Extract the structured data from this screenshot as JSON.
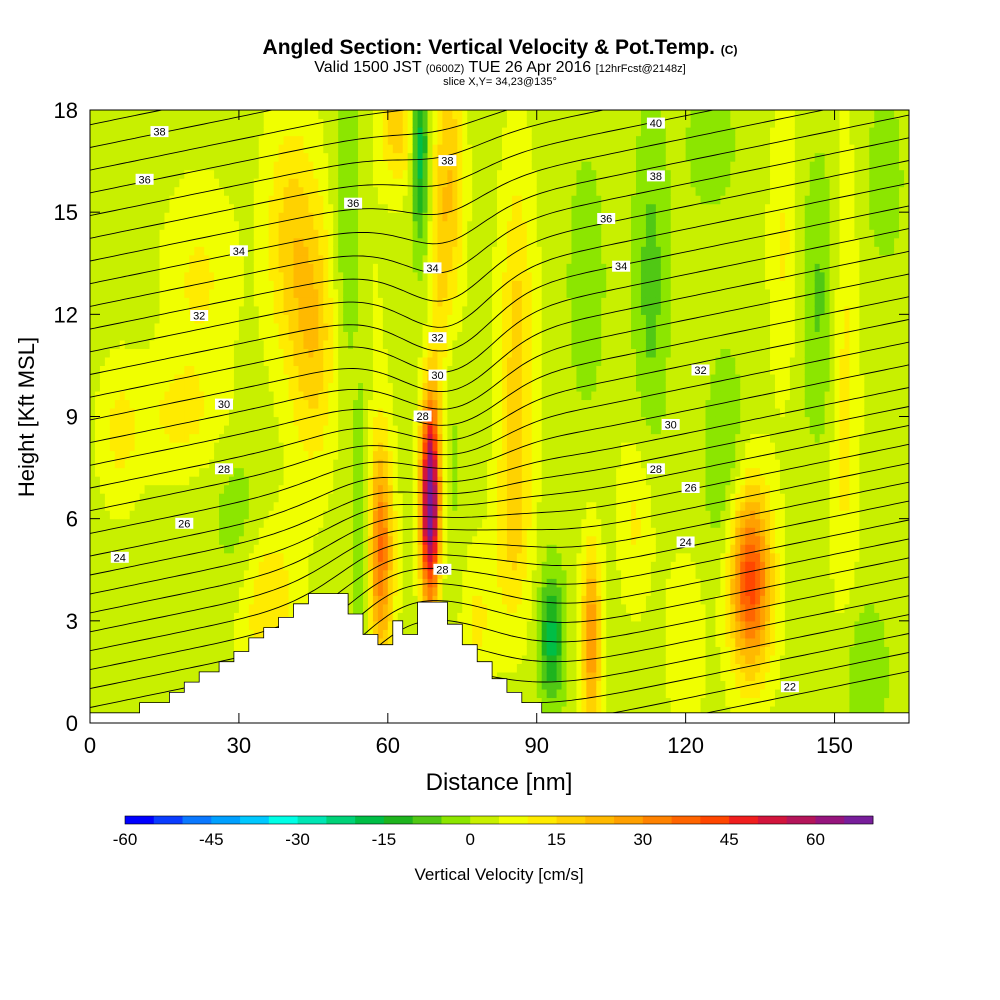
{
  "header": {
    "title_main": "Angled Section: Vertical Velocity & Pot.Temp.",
    "title_units": "(C)",
    "valid_prefix": "Valid 1500 JST",
    "valid_utc": "(0600Z)",
    "valid_date": "TUE 26 Apr 2016",
    "forecast": "[12hrFcst@2148z]",
    "slice": "slice X,Y= 34,23@135°"
  },
  "chart_data": {
    "type": "heatmap",
    "xlabel": "Distance [nm]",
    "ylabel": "Height [Kft MSL]",
    "xlim": [
      0,
      165
    ],
    "ylim": [
      0,
      18
    ],
    "x_ticks": [
      0,
      30,
      60,
      90,
      120,
      150
    ],
    "y_ticks": [
      0,
      3,
      6,
      9,
      12,
      15,
      18
    ],
    "colorbar": {
      "label": "Vertical Velocity [cm/s]",
      "range": [
        -60,
        70
      ],
      "step": 5,
      "ticks": [
        -60,
        -45,
        -30,
        -15,
        0,
        15,
        30,
        45,
        60
      ],
      "colors": [
        "#0000ff",
        "#0a3cff",
        "#0a78ff",
        "#00a0ff",
        "#00c8ff",
        "#00ffe6",
        "#00e6b4",
        "#00d278",
        "#00be46",
        "#1eb41e",
        "#50c814",
        "#8ce600",
        "#c8f000",
        "#f0ff00",
        "#ffeb00",
        "#ffd200",
        "#ffb900",
        "#ffa000",
        "#ff8200",
        "#ff6400",
        "#ff4600",
        "#f01e1e",
        "#d2143c",
        "#b4145a",
        "#96147d",
        "#781e9b"
      ]
    },
    "terrain_profile": [
      [
        0,
        0.3
      ],
      [
        10,
        0.3
      ],
      [
        10,
        0.6
      ],
      [
        16,
        0.6
      ],
      [
        16,
        0.9
      ],
      [
        19,
        0.9
      ],
      [
        19,
        1.2
      ],
      [
        22,
        1.2
      ],
      [
        22,
        1.5
      ],
      [
        26,
        1.5
      ],
      [
        26,
        1.8
      ],
      [
        29,
        1.8
      ],
      [
        29,
        2.1
      ],
      [
        32,
        2.1
      ],
      [
        32,
        2.5
      ],
      [
        35,
        2.5
      ],
      [
        35,
        2.8
      ],
      [
        38,
        2.8
      ],
      [
        38,
        3.1
      ],
      [
        41,
        3.1
      ],
      [
        41,
        3.5
      ],
      [
        44,
        3.5
      ],
      [
        44,
        3.8
      ],
      [
        52,
        3.8
      ],
      [
        52,
        3.2
      ],
      [
        55,
        3.2
      ],
      [
        55,
        2.6
      ],
      [
        58,
        2.6
      ],
      [
        58,
        2.3
      ],
      [
        61,
        2.3
      ],
      [
        61,
        3.0
      ],
      [
        63,
        3.0
      ],
      [
        63,
        2.6
      ],
      [
        66,
        2.6
      ],
      [
        66,
        3.55
      ],
      [
        72,
        3.55
      ],
      [
        72,
        2.9
      ],
      [
        75,
        2.9
      ],
      [
        75,
        2.3
      ],
      [
        78,
        2.3
      ],
      [
        78,
        1.8
      ],
      [
        81,
        1.8
      ],
      [
        81,
        1.3
      ],
      [
        84,
        1.3
      ],
      [
        84,
        0.9
      ],
      [
        87,
        0.9
      ],
      [
        87,
        0.6
      ],
      [
        91,
        0.6
      ],
      [
        91,
        0.3
      ],
      [
        165,
        0.3
      ]
    ],
    "velocity_field": {
      "background": 3,
      "features": [
        {
          "x": 68.5,
          "z": 6.5,
          "sx": 1.3,
          "sz": 2.1,
          "w": 70
        },
        {
          "x": 70.5,
          "z": 11.5,
          "sx": 1.7,
          "sz": 4.5,
          "w": 22
        },
        {
          "x": 73.0,
          "z": 15.5,
          "sx": 1.8,
          "sz": 3.0,
          "w": 16
        },
        {
          "x": 58.5,
          "z": 5.0,
          "sx": 1.8,
          "sz": 2.2,
          "w": 32
        },
        {
          "x": 55.0,
          "z": 9.5,
          "sx": 2.5,
          "sz": 4.0,
          "w": 8
        },
        {
          "x": 133.0,
          "z": 4.2,
          "sx": 3.0,
          "sz": 1.9,
          "w": 40
        },
        {
          "x": 101.0,
          "z": 2.5,
          "sx": 1.4,
          "sz": 1.8,
          "w": 28
        },
        {
          "x": 86.0,
          "z": 11.0,
          "sx": 2.5,
          "sz": 3.8,
          "w": 14
        },
        {
          "x": 85.0,
          "z": 5.5,
          "sx": 2.5,
          "sz": 2.0,
          "w": 10
        },
        {
          "x": 45.0,
          "z": 11.5,
          "sx": 3.5,
          "sz": 2.8,
          "w": 16
        },
        {
          "x": 40.0,
          "z": 14.5,
          "sx": 3.5,
          "sz": 2.5,
          "w": 12
        },
        {
          "x": 36.0,
          "z": 3.5,
          "sx": 4.0,
          "sz": 1.8,
          "w": 12
        },
        {
          "x": 18.0,
          "z": 9.0,
          "sx": 6.0,
          "sz": 1.2,
          "w": 8
        },
        {
          "x": 110.0,
          "z": 6.0,
          "sx": 2.5,
          "sz": 1.8,
          "w": 8
        },
        {
          "x": 152.0,
          "z": 10.0,
          "sx": 2.0,
          "sz": 5.0,
          "w": 10
        },
        {
          "x": 140.0,
          "z": 14.0,
          "sx": 2.2,
          "sz": 3.0,
          "w": 8
        },
        {
          "x": 78.0,
          "z": 3.0,
          "sx": 2.5,
          "sz": 1.5,
          "w": 8
        },
        {
          "x": 120.0,
          "z": 2.5,
          "sx": 3.0,
          "sz": 1.8,
          "w": 6
        },
        {
          "x": 22.0,
          "z": 13.0,
          "sx": 5.0,
          "sz": 2.0,
          "w": 8
        },
        {
          "x": 6.0,
          "z": 8.5,
          "sx": 3.0,
          "sz": 1.5,
          "w": 8
        },
        {
          "x": 62.0,
          "z": 17.5,
          "sx": 2.5,
          "sz": 1.2,
          "w": 15
        },
        {
          "x": 71.0,
          "z": 10.0,
          "sx": 2.2,
          "sz": 4.2,
          "w": -16
        },
        {
          "x": 66.5,
          "z": 17.0,
          "sx": 1.2,
          "sz": 2.0,
          "w": -22
        },
        {
          "x": 55.0,
          "z": 6.5,
          "sx": 1.6,
          "sz": 3.5,
          "w": -14
        },
        {
          "x": 52.0,
          "z": 14.0,
          "sx": 2.2,
          "sz": 4.0,
          "w": -10
        },
        {
          "x": 93.0,
          "z": 2.5,
          "sx": 1.8,
          "sz": 1.4,
          "w": -20
        },
        {
          "x": 113.0,
          "z": 13.0,
          "sx": 2.5,
          "sz": 3.5,
          "w": -10
        },
        {
          "x": 128.0,
          "z": 7.5,
          "sx": 3.0,
          "sz": 2.5,
          "w": -8
        },
        {
          "x": 147.0,
          "z": 12.5,
          "sx": 3.0,
          "sz": 3.0,
          "w": -9
        },
        {
          "x": 156.0,
          "z": 1.5,
          "sx": 3.5,
          "sz": 1.5,
          "w": -8
        },
        {
          "x": 100.0,
          "z": 13.0,
          "sx": 3.0,
          "sz": 3.0,
          "w": -6
        },
        {
          "x": 30.0,
          "z": 6.0,
          "sx": 4.0,
          "sz": 1.5,
          "w": -6
        },
        {
          "x": 160.0,
          "z": 16.0,
          "sx": 3.0,
          "sz": 2.0,
          "w": -6
        },
        {
          "x": 125.0,
          "z": 17.0,
          "sx": 4.0,
          "sz": 1.5,
          "w": -6
        }
      ]
    },
    "theta_field": {
      "lapse_lower": 0.9,
      "lapse_upper": 0.75,
      "break_height": 7.0,
      "base": 21.2,
      "cold_core": {
        "x": 68,
        "z": 4.0,
        "sx": 13,
        "sz": 2.8,
        "a": -1.8
      },
      "warm_core": {
        "x": 72,
        "z": 10,
        "sx": 9,
        "sz": 4,
        "a": 1.2
      },
      "front_tilt": 0.03
    },
    "isentrope_levels": [
      20,
      20.5,
      21,
      21.5,
      22,
      22.5,
      23,
      23.5,
      24,
      24.5,
      25,
      25.5,
      26,
      26.5,
      27,
      27.5,
      28,
      28.5,
      29,
      29.5,
      30,
      30.5,
      31,
      31.5,
      32,
      32.5,
      33,
      33.5,
      34,
      34.5,
      35,
      35.5,
      36,
      36.5,
      37,
      37.5,
      38,
      38.5,
      39,
      39.5,
      40,
      40.5
    ],
    "isentrope_labels": [
      {
        "text": "38",
        "x": 14,
        "z": 17.35
      },
      {
        "text": "36",
        "x": 11,
        "z": 15.95
      },
      {
        "text": "34",
        "x": 30,
        "z": 13.85
      },
      {
        "text": "32",
        "x": 22,
        "z": 11.95
      },
      {
        "text": "30",
        "x": 27,
        "z": 9.35
      },
      {
        "text": "28",
        "x": 27,
        "z": 7.45
      },
      {
        "text": "26",
        "x": 19,
        "z": 5.85
      },
      {
        "text": "24",
        "x": 6,
        "z": 4.85
      },
      {
        "text": "38",
        "x": 72,
        "z": 16.5
      },
      {
        "text": "36",
        "x": 53,
        "z": 15.25
      },
      {
        "text": "34",
        "x": 69,
        "z": 13.35
      },
      {
        "text": "32",
        "x": 70,
        "z": 11.3
      },
      {
        "text": "30",
        "x": 70,
        "z": 10.2
      },
      {
        "text": "28",
        "x": 67,
        "z": 9.0
      },
      {
        "text": "28",
        "x": 71,
        "z": 4.5
      },
      {
        "text": "40",
        "x": 114,
        "z": 17.6
      },
      {
        "text": "38",
        "x": 114,
        "z": 16.05
      },
      {
        "text": "36",
        "x": 104,
        "z": 14.8
      },
      {
        "text": "34",
        "x": 107,
        "z": 13.4
      },
      {
        "text": "32",
        "x": 123,
        "z": 10.35
      },
      {
        "text": "30",
        "x": 117,
        "z": 8.75
      },
      {
        "text": "28",
        "x": 114,
        "z": 7.45
      },
      {
        "text": "26",
        "x": 121,
        "z": 6.9
      },
      {
        "text": "24",
        "x": 120,
        "z": 5.3
      },
      {
        "text": "22",
        "x": 141,
        "z": 1.05
      }
    ]
  }
}
